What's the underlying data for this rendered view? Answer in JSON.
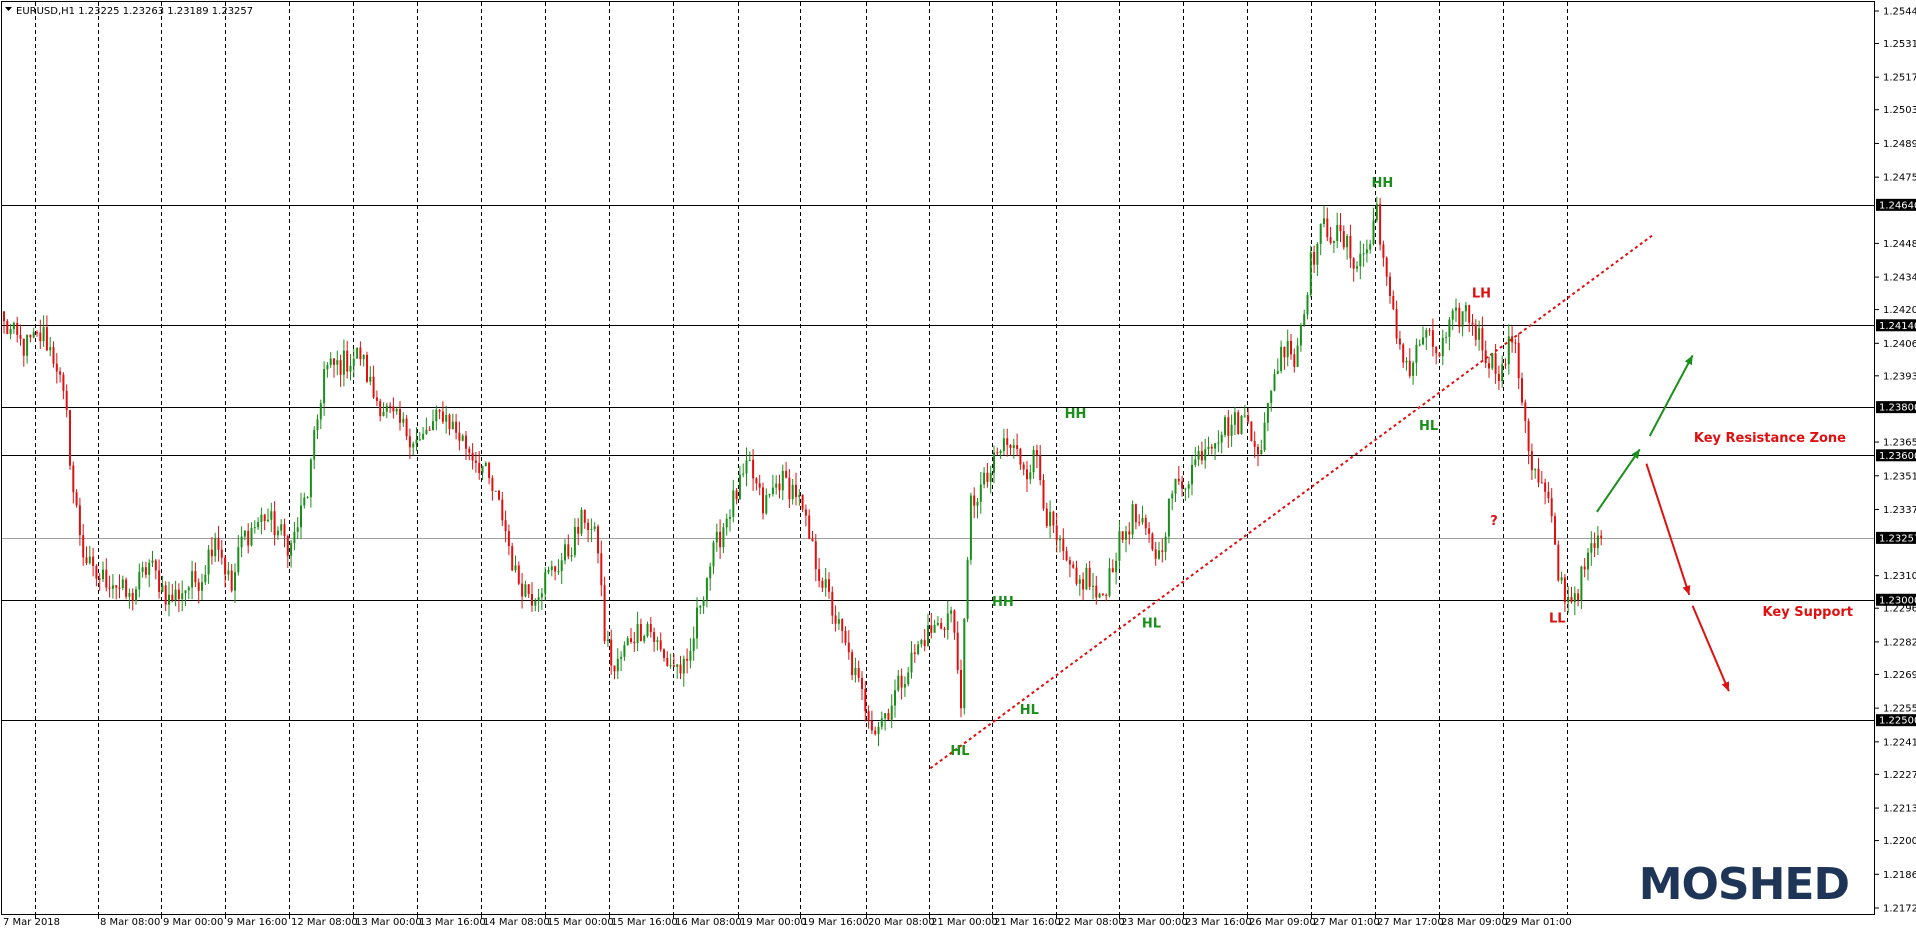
{
  "window": {
    "header": "EURUSD,H1  1.23225 1.23263 1.23189 1.23257",
    "logo": "MOSHED"
  },
  "colors": {
    "bull": "#1a8f1a",
    "bear": "#e01010",
    "grid": "#000000",
    "level": "#000000",
    "current_line": "#a0a0a0",
    "tag_bg": "#000000",
    "tag_text": "#ffffff",
    "logo": "#1f3557"
  },
  "chart_data": {
    "type": "candlestick",
    "symbol": "EURUSD",
    "timeframe": "H1",
    "ohlc_header": {
      "open": 1.23225,
      "high": 1.23263,
      "low": 1.23189,
      "close": 1.23257
    },
    "ylim": [
      1.2172,
      1.25445
    ],
    "y_ticks": [
      1.25445,
      1.2531,
      1.2517,
      1.25035,
      1.24895,
      1.24755,
      1.2448,
      1.2434,
      1.24205,
      1.24065,
      1.2393,
      1.23655,
      1.23515,
      1.23375,
      1.231,
      1.22965,
      1.22825,
      1.2269,
      1.2255,
      1.2241,
      1.22275,
      1.22135,
      1.22,
      1.2186,
      1.2172
    ],
    "x_ticks": [
      "7 Mar 2018",
      "8 Mar 08:00",
      "9 Mar 00:00",
      "9 Mar 16:00",
      "12 Mar 08:00",
      "13 Mar 00:00",
      "13 Mar 16:00",
      "14 Mar 08:00",
      "15 Mar 00:00",
      "15 Mar 16:00",
      "16 Mar 08:00",
      "19 Mar 00:00",
      "19 Mar 16:00",
      "20 Mar 08:00",
      "21 Mar 00:00",
      "21 Mar 16:00",
      "22 Mar 08:00",
      "23 Mar 00:00",
      "23 Mar 16:00",
      "26 Mar 09:00",
      "27 Mar 01:00",
      "27 Mar 17:00",
      "28 Mar 09:00",
      "29 Mar 01:00"
    ],
    "price_levels": [
      {
        "price": 1.2464,
        "label": "1.24640"
      },
      {
        "price": 1.2414,
        "label": "1.24140"
      },
      {
        "price": 1.238,
        "label": "1.23800"
      },
      {
        "price": 1.236,
        "label": "1.23600"
      },
      {
        "price": 1.23,
        "label": "1.23000"
      },
      {
        "price": 1.225,
        "label": "1.22500"
      }
    ],
    "current_price": {
      "price": 1.23257,
      "label": "1.23257"
    },
    "candle_path": [
      [
        0,
        1.2414
      ],
      [
        6,
        1.2405
      ],
      [
        12,
        1.241
      ],
      [
        16,
        1.2398
      ],
      [
        19,
        1.2375
      ],
      [
        21,
        1.2345
      ],
      [
        24,
        1.232
      ],
      [
        27,
        1.231
      ],
      [
        33,
        1.2308
      ],
      [
        38,
        1.23
      ],
      [
        44,
        1.2315
      ],
      [
        50,
        1.23
      ],
      [
        55,
        1.2305
      ],
      [
        60,
        1.231
      ],
      [
        64,
        1.2328
      ],
      [
        69,
        1.2304
      ],
      [
        72,
        1.2325
      ],
      [
        79,
        1.2335
      ],
      [
        87,
        1.2322
      ],
      [
        92,
        1.2345
      ],
      [
        97,
        1.2395
      ],
      [
        102,
        1.2398
      ],
      [
        108,
        1.2402
      ],
      [
        112,
        1.2385
      ],
      [
        118,
        1.2375
      ],
      [
        126,
        1.2365
      ],
      [
        133,
        1.2378
      ],
      [
        138,
        1.2368
      ],
      [
        145,
        1.2355
      ],
      [
        151,
        1.2335
      ],
      [
        155,
        1.231
      ],
      [
        160,
        1.2302
      ],
      [
        165,
        1.231
      ],
      [
        171,
        1.232
      ],
      [
        176,
        1.2335
      ],
      [
        180,
        1.2322
      ],
      [
        182,
        1.2285
      ],
      [
        185,
        1.227
      ],
      [
        190,
        1.2285
      ],
      [
        195,
        1.229
      ],
      [
        200,
        1.2275
      ],
      [
        207,
        1.227
      ],
      [
        211,
        1.23
      ],
      [
        214,
        1.2315
      ],
      [
        219,
        1.2335
      ],
      [
        224,
        1.235
      ],
      [
        226,
        1.2355
      ],
      [
        230,
        1.2338
      ],
      [
        235,
        1.235
      ],
      [
        240,
        1.2345
      ],
      [
        245,
        1.232
      ],
      [
        250,
        1.23
      ],
      [
        255,
        1.228
      ],
      [
        260,
        1.226
      ],
      [
        264,
        1.2247
      ],
      [
        268,
        1.2255
      ],
      [
        273,
        1.227
      ],
      [
        279,
        1.2285
      ],
      [
        284,
        1.229
      ],
      [
        287,
        1.2295
      ],
      [
        290,
        1.226
      ],
      [
        293,
        1.234
      ],
      [
        298,
        1.235
      ],
      [
        303,
        1.2365
      ],
      [
        306,
        1.2362
      ],
      [
        310,
        1.2355
      ],
      [
        313,
        1.236
      ],
      [
        316,
        1.2335
      ],
      [
        320,
        1.232
      ],
      [
        325,
        1.2305
      ],
      [
        328,
        1.231
      ],
      [
        332,
        1.2298
      ],
      [
        337,
        1.232
      ],
      [
        342,
        1.2335
      ],
      [
        350,
        1.2318
      ],
      [
        354,
        1.2345
      ],
      [
        358,
        1.235
      ],
      [
        364,
        1.2365
      ],
      [
        370,
        1.2372
      ],
      [
        377,
        1.2375
      ],
      [
        381,
        1.236
      ],
      [
        384,
        1.239
      ],
      [
        389,
        1.241
      ],
      [
        391,
        1.2398
      ],
      [
        396,
        1.244
      ],
      [
        400,
        1.2455
      ],
      [
        405,
        1.245
      ],
      [
        410,
        1.244
      ],
      [
        414,
        1.2448
      ],
      [
        416,
        1.2464
      ],
      [
        419,
        1.243
      ],
      [
        422,
        1.241
      ],
      [
        426,
        1.2395
      ],
      [
        430,
        1.241
      ],
      [
        435,
        1.2402
      ],
      [
        439,
        1.2415
      ],
      [
        443,
        1.242
      ],
      [
        446,
        1.2412
      ],
      [
        450,
        1.24
      ],
      [
        454,
        1.2395
      ],
      [
        457,
        1.241
      ],
      [
        460,
        1.2385
      ],
      [
        463,
        1.2355
      ],
      [
        468,
        1.234
      ],
      [
        471,
        1.231
      ],
      [
        474,
        1.23
      ],
      [
        477,
        1.2305
      ],
      [
        481,
        1.232
      ],
      [
        484,
        1.2326
      ]
    ]
  },
  "labels": {
    "key_resistance": "Key Resistance Zone",
    "key_support": "Key Support",
    "question": "?"
  },
  "annotations": [
    {
      "id": "hh-a",
      "text": "HH",
      "color": "bull",
      "candle": 418,
      "price": 1.24715
    },
    {
      "id": "lh-a",
      "text": "LH",
      "color": "bear",
      "candle": 448,
      "price": 1.24255
    },
    {
      "id": "hl-a",
      "text": "HL",
      "color": "bull",
      "candle": 432,
      "price": 1.23705
    },
    {
      "id": "hh-b",
      "text": "HH",
      "color": "bull",
      "candle": 325,
      "price": 1.23755
    },
    {
      "id": "hh-c",
      "text": "HH",
      "color": "bull",
      "candle": 303,
      "price": 1.22975
    },
    {
      "id": "hl-b",
      "text": "HL",
      "color": "bull",
      "candle": 311,
      "price": 1.22525
    },
    {
      "id": "hl-c",
      "text": "HL",
      "color": "bull",
      "candle": 348,
      "price": 1.22885
    },
    {
      "id": "hl-d",
      "text": "HL",
      "color": "bull",
      "candle": 290,
      "price": 1.22355
    },
    {
      "id": "ll-a",
      "text": "LL",
      "color": "bear",
      "candle": 471,
      "price": 1.22905
    }
  ],
  "trendline": {
    "from": [
      281,
      1.223
    ],
    "to": [
      500,
      1.24515
    ],
    "color": "bear",
    "dash": "dotted"
  },
  "arrows": [
    {
      "id": "up-1",
      "from": [
        483,
        1.23365
      ],
      "to": [
        496,
        1.23625
      ],
      "color": "bull"
    },
    {
      "id": "up-2",
      "from": [
        499,
        1.2368
      ],
      "to": [
        512,
        1.24015
      ],
      "color": "bull"
    },
    {
      "id": "down-1",
      "from": [
        498,
        1.23565
      ],
      "to": [
        511,
        1.2302
      ],
      "color": "bear"
    },
    {
      "id": "down-2",
      "from": [
        512,
        1.22975
      ],
      "to": [
        523,
        1.2262
      ],
      "color": "bear"
    }
  ]
}
